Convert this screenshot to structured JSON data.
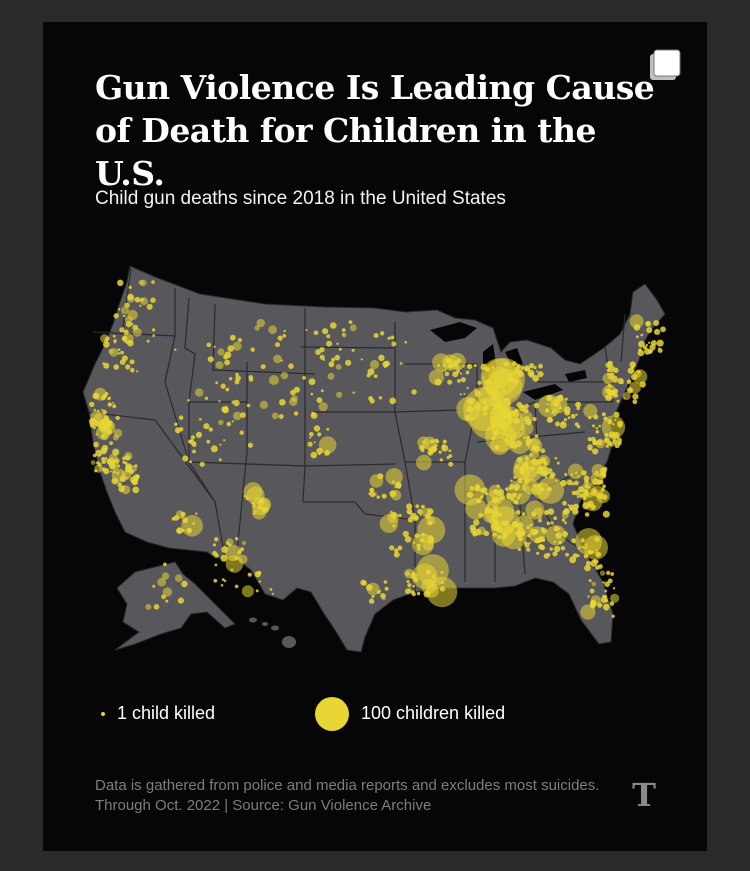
{
  "graphic": {
    "title": "Gun Violence Is Leading Cause of Death for Children in the U.S.",
    "subtitle": "Child gun deaths since 2018 in the United States",
    "footnote": "Data is gathered from police and media reports and excludes most suicides. Through Oct. 2022 | Source: Gun Violence Archive",
    "logo_text": "T"
  },
  "legend": {
    "small_label": "1 child killed",
    "large_label": "100 children killed"
  },
  "colors": {
    "background": "#060607",
    "land": "#58585c",
    "borders": "#2a2a2e",
    "dots": "#e8d634",
    "footnote": "#7d7d7d"
  },
  "icons": [
    "share-icon",
    "nyt-logo-icon"
  ]
}
